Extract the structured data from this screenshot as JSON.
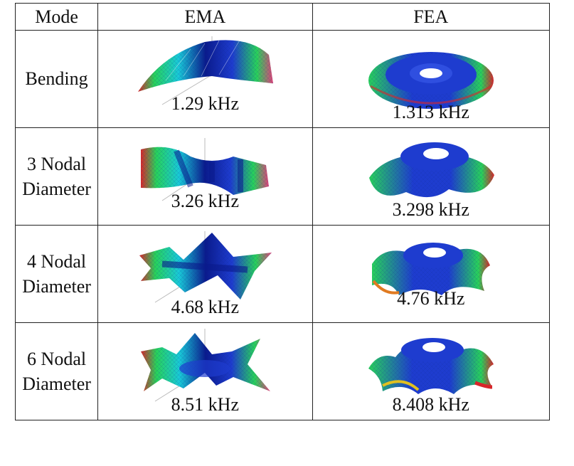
{
  "headers": {
    "mode": "Mode",
    "ema": "EMA",
    "fea": "FEA"
  },
  "rows": [
    {
      "mode": [
        "Bending"
      ],
      "ema_freq": "1.29 kHz",
      "fea_freq": "1.313 kHz",
      "ema_shape": "bending",
      "fea_shape": "bending"
    },
    {
      "mode": [
        "3 Nodal",
        "Diameter"
      ],
      "ema_freq": "3.26 kHz",
      "fea_freq": "3.298 kHz",
      "ema_shape": "3nd",
      "fea_shape": "3nd"
    },
    {
      "mode": [
        "4 Nodal",
        "Diameter"
      ],
      "ema_freq": "4.68 kHz",
      "fea_freq": "4.76 kHz",
      "ema_shape": "4nd",
      "fea_shape": "4nd"
    },
    {
      "mode": [
        "6 Nodal",
        "Diameter"
      ],
      "ema_freq": "8.51 kHz",
      "fea_freq": "8.408 kHz",
      "ema_shape": "6nd",
      "fea_shape": "6nd"
    }
  ],
  "colors": {
    "deep_blue": "#0a1a8c",
    "blue": "#1e3ccf",
    "cyan": "#19c9d8",
    "green": "#28d25a",
    "red": "#d8262a",
    "magenta": "#e0407a",
    "orange": "#e07a20"
  }
}
